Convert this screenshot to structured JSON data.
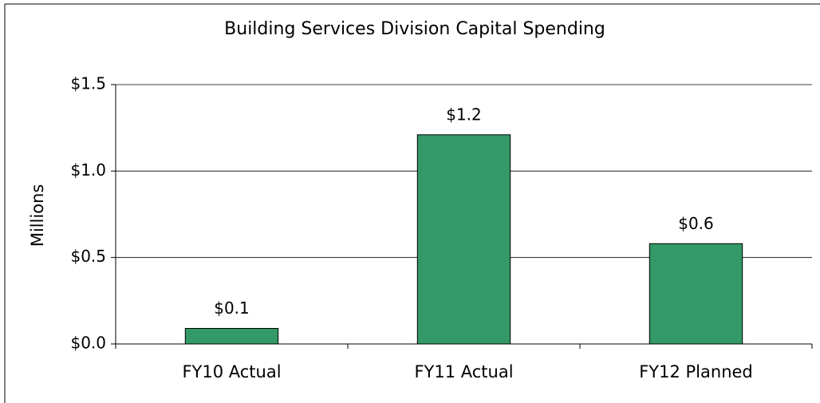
{
  "chart_data": {
    "type": "bar",
    "title": "Building Services Division Capital Spending",
    "ylabel": "Millions",
    "categories": [
      "FY10 Actual",
      "FY11 Actual",
      "FY12 Planned"
    ],
    "values": [
      0.09,
      1.21,
      0.58
    ],
    "value_labels": [
      "$0.1",
      "$1.2",
      "$0.6"
    ],
    "color": "#339966",
    "ylim": [
      0,
      1.5
    ],
    "yticks": [
      {
        "value": 0,
        "label": "$0.0"
      },
      {
        "value": 0.5,
        "label": "$0.5"
      },
      {
        "value": 1.0,
        "label": "$1.0"
      },
      {
        "value": 1.5,
        "label": "$1.5"
      }
    ],
    "grid": true
  }
}
